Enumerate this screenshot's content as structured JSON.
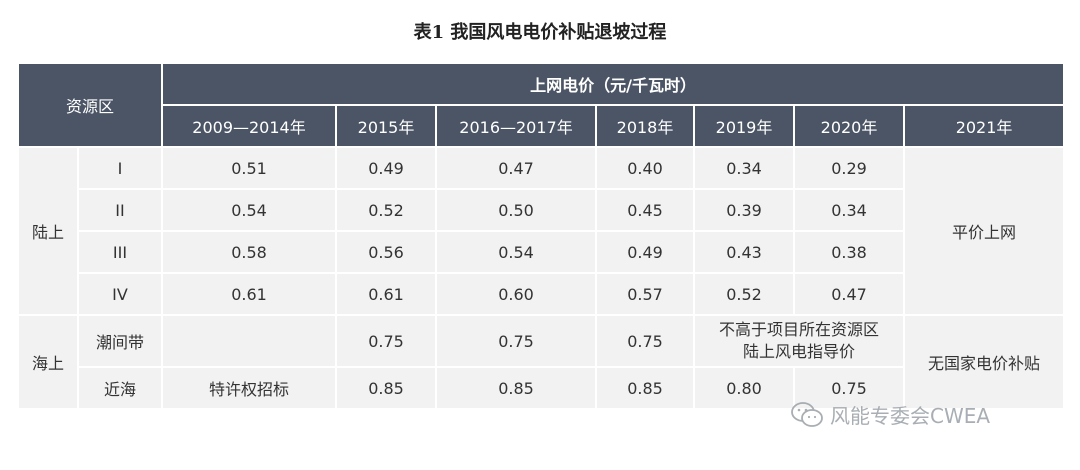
{
  "title": "表1 我国风电电价补贴退坡过程",
  "header": {
    "region_label": "资源区",
    "price_label": "上网电价（元/千瓦时）",
    "years": [
      "2009—2014年",
      "2015年",
      "2016—2017年",
      "2018年",
      "2019年",
      "2020年",
      "2021年"
    ]
  },
  "onshore": {
    "label": "陆上",
    "rows": [
      {
        "zone": "I",
        "values": [
          "0.51",
          "0.49",
          "0.47",
          "0.40",
          "0.34",
          "0.29"
        ]
      },
      {
        "zone": "II",
        "values": [
          "0.54",
          "0.52",
          "0.50",
          "0.45",
          "0.39",
          "0.34"
        ]
      },
      {
        "zone": "III",
        "values": [
          "0.58",
          "0.56",
          "0.54",
          "0.49",
          "0.43",
          "0.38"
        ]
      },
      {
        "zone": "IV",
        "values": [
          "0.61",
          "0.61",
          "0.60",
          "0.57",
          "0.52",
          "0.47"
        ]
      }
    ],
    "y2021": "平价上网"
  },
  "offshore": {
    "label": "海上",
    "intertidal": {
      "zone": "潮间带",
      "values": [
        "",
        "0.75",
        "0.75",
        "0.75"
      ],
      "note_line1": "不高于项目所在资源区",
      "note_line2": "陆上风电指导价"
    },
    "nearshore": {
      "zone": "近海",
      "values": [
        "特许权招标",
        "0.85",
        "0.85",
        "0.85",
        "0.80",
        "0.75"
      ]
    },
    "y2021": "无国家电价补贴"
  },
  "watermark": "风能专委会CWEA"
}
